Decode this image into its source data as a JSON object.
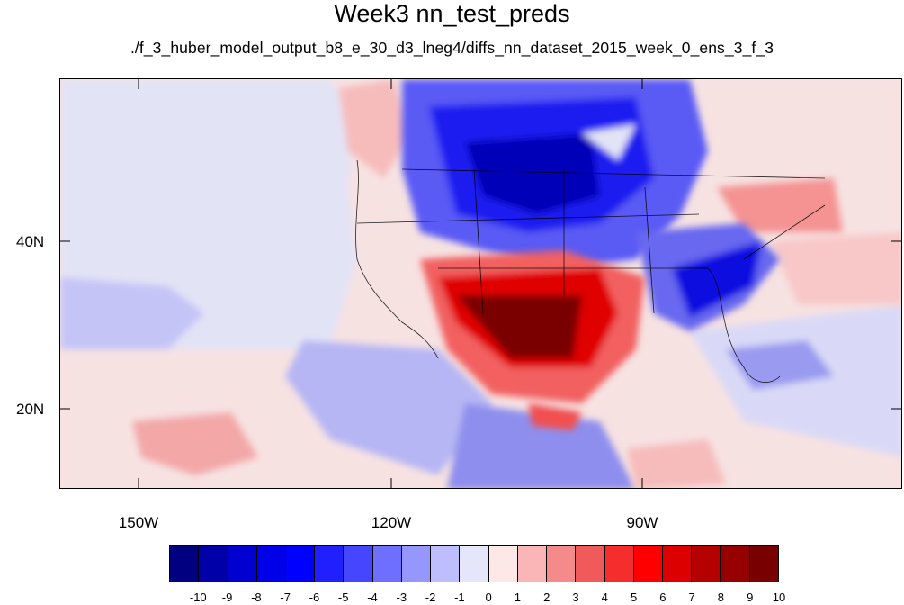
{
  "title": "Week3 nn_test_preds",
  "subtitle": "./f_3_huber_model_output_b8_e_30_d3_lneg4/diffs_nn_dataset_2015_week_0_ens_3_f_3",
  "map": {
    "lat_labels": [
      "40N",
      "20N"
    ],
    "lon_labels": [
      "150W",
      "120W",
      "90W"
    ],
    "background_color": "#f7dede"
  },
  "colorbar": {
    "levels": [
      "-10",
      "-9",
      "-8",
      "-7",
      "-6",
      "-5",
      "-4",
      "-3",
      "-2",
      "-1",
      "0",
      "1",
      "2",
      "3",
      "4",
      "5",
      "6",
      "7",
      "8",
      "9",
      "10"
    ],
    "colors": [
      "#000080",
      "#0000a8",
      "#0000d0",
      "#0000e8",
      "#0000ff",
      "#2020ff",
      "#4646ff",
      "#6e6eff",
      "#9696ff",
      "#bebeff",
      "#e6e6fa",
      "#fde8e8",
      "#fab6b6",
      "#f58a8a",
      "#f05a5a",
      "#f52d2d",
      "#ff0000",
      "#dc0000",
      "#b40000",
      "#960000",
      "#780000"
    ]
  }
}
